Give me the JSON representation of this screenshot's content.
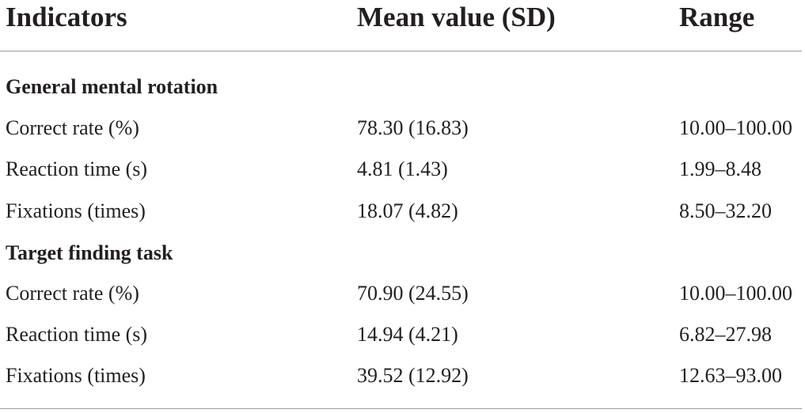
{
  "table": {
    "headers": {
      "indicators": "Indicators",
      "mean": "Mean value (SD)",
      "range": "Range"
    },
    "sections": [
      {
        "title": "General mental rotation",
        "rows": [
          {
            "indicator": "Correct rate (%)",
            "mean": "78.30 (16.83)",
            "range": "10.00–100.00"
          },
          {
            "indicator": "Reaction time (s)",
            "mean": "4.81 (1.43)",
            "range": "1.99–8.48"
          },
          {
            "indicator": "Fixations (times)",
            "mean": "18.07 (4.82)",
            "range": "8.50–32.20"
          }
        ]
      },
      {
        "title": "Target finding task",
        "rows": [
          {
            "indicator": "Correct rate (%)",
            "mean": "70.90 (24.55)",
            "range": "10.00–100.00"
          },
          {
            "indicator": "Reaction time (s)",
            "mean": "14.94 (4.21)",
            "range": "6.82–27.98"
          },
          {
            "indicator": "Fixations (times)",
            "mean": "39.52 (12.92)",
            "range": "12.63–93.00"
          }
        ]
      }
    ]
  }
}
